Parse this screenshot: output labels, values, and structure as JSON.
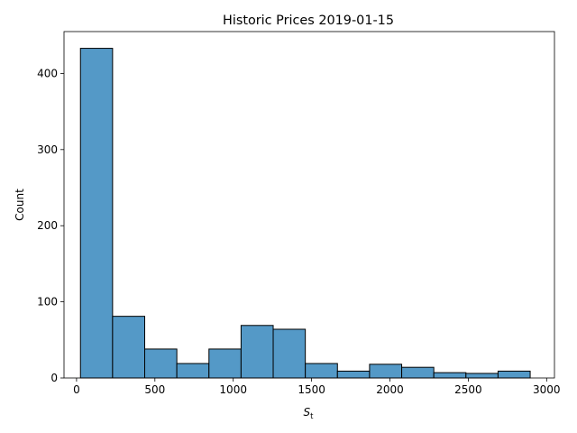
{
  "chart_data": {
    "type": "bar",
    "subtype": "histogram",
    "title": "Historic Prices 2019-01-15",
    "xlabel": {
      "base": "S",
      "subscript": "t"
    },
    "ylabel": "Count",
    "xlim": [
      -80,
      3050
    ],
    "ylim": [
      0,
      455
    ],
    "x_ticks": [
      0,
      500,
      1000,
      1500,
      2000,
      2500,
      3000
    ],
    "y_ticks": [
      0,
      100,
      200,
      300,
      400
    ],
    "bins": [
      {
        "x0": 25,
        "x1": 230,
        "count": 433
      },
      {
        "x0": 230,
        "x1": 435,
        "count": 81
      },
      {
        "x0": 435,
        "x1": 640,
        "count": 38
      },
      {
        "x0": 640,
        "x1": 845,
        "count": 19
      },
      {
        "x0": 845,
        "x1": 1050,
        "count": 38
      },
      {
        "x0": 1050,
        "x1": 1255,
        "count": 69
      },
      {
        "x0": 1255,
        "x1": 1460,
        "count": 64
      },
      {
        "x0": 1460,
        "x1": 1665,
        "count": 19
      },
      {
        "x0": 1665,
        "x1": 1870,
        "count": 9
      },
      {
        "x0": 1870,
        "x1": 2075,
        "count": 18
      },
      {
        "x0": 2075,
        "x1": 2280,
        "count": 14
      },
      {
        "x0": 2280,
        "x1": 2485,
        "count": 7
      },
      {
        "x0": 2485,
        "x1": 2690,
        "count": 6
      },
      {
        "x0": 2690,
        "x1": 2895,
        "count": 9
      }
    ],
    "bar_color": "#5499c7",
    "edge_color": "#000000",
    "grid": false,
    "legend": "none"
  }
}
